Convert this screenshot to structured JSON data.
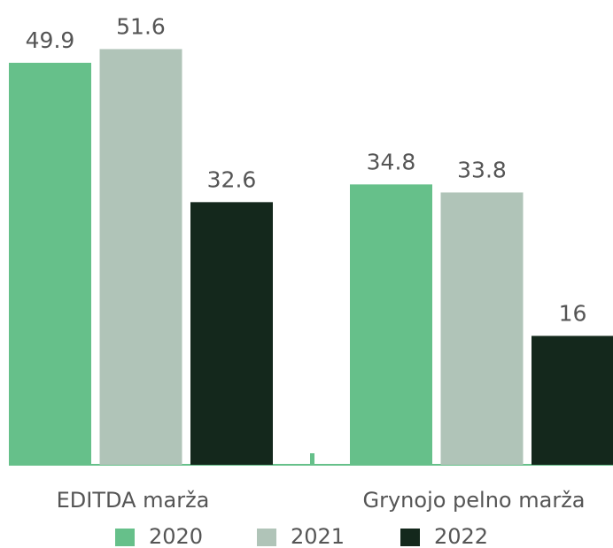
{
  "chart_data": {
    "type": "bar",
    "categories": [
      "EDITDA marža",
      "Grynojo pelno marža"
    ],
    "series": [
      {
        "name": "2020",
        "color": "#66c08a",
        "values": [
          49.9,
          34.8
        ]
      },
      {
        "name": "2021",
        "color": "#b0c4b8",
        "values": [
          51.6,
          33.8
        ]
      },
      {
        "name": "2022",
        "color": "#14281c",
        "values": [
          32.6,
          16
        ]
      }
    ],
    "ylim": [
      0,
      55
    ],
    "legend": "bottom"
  }
}
